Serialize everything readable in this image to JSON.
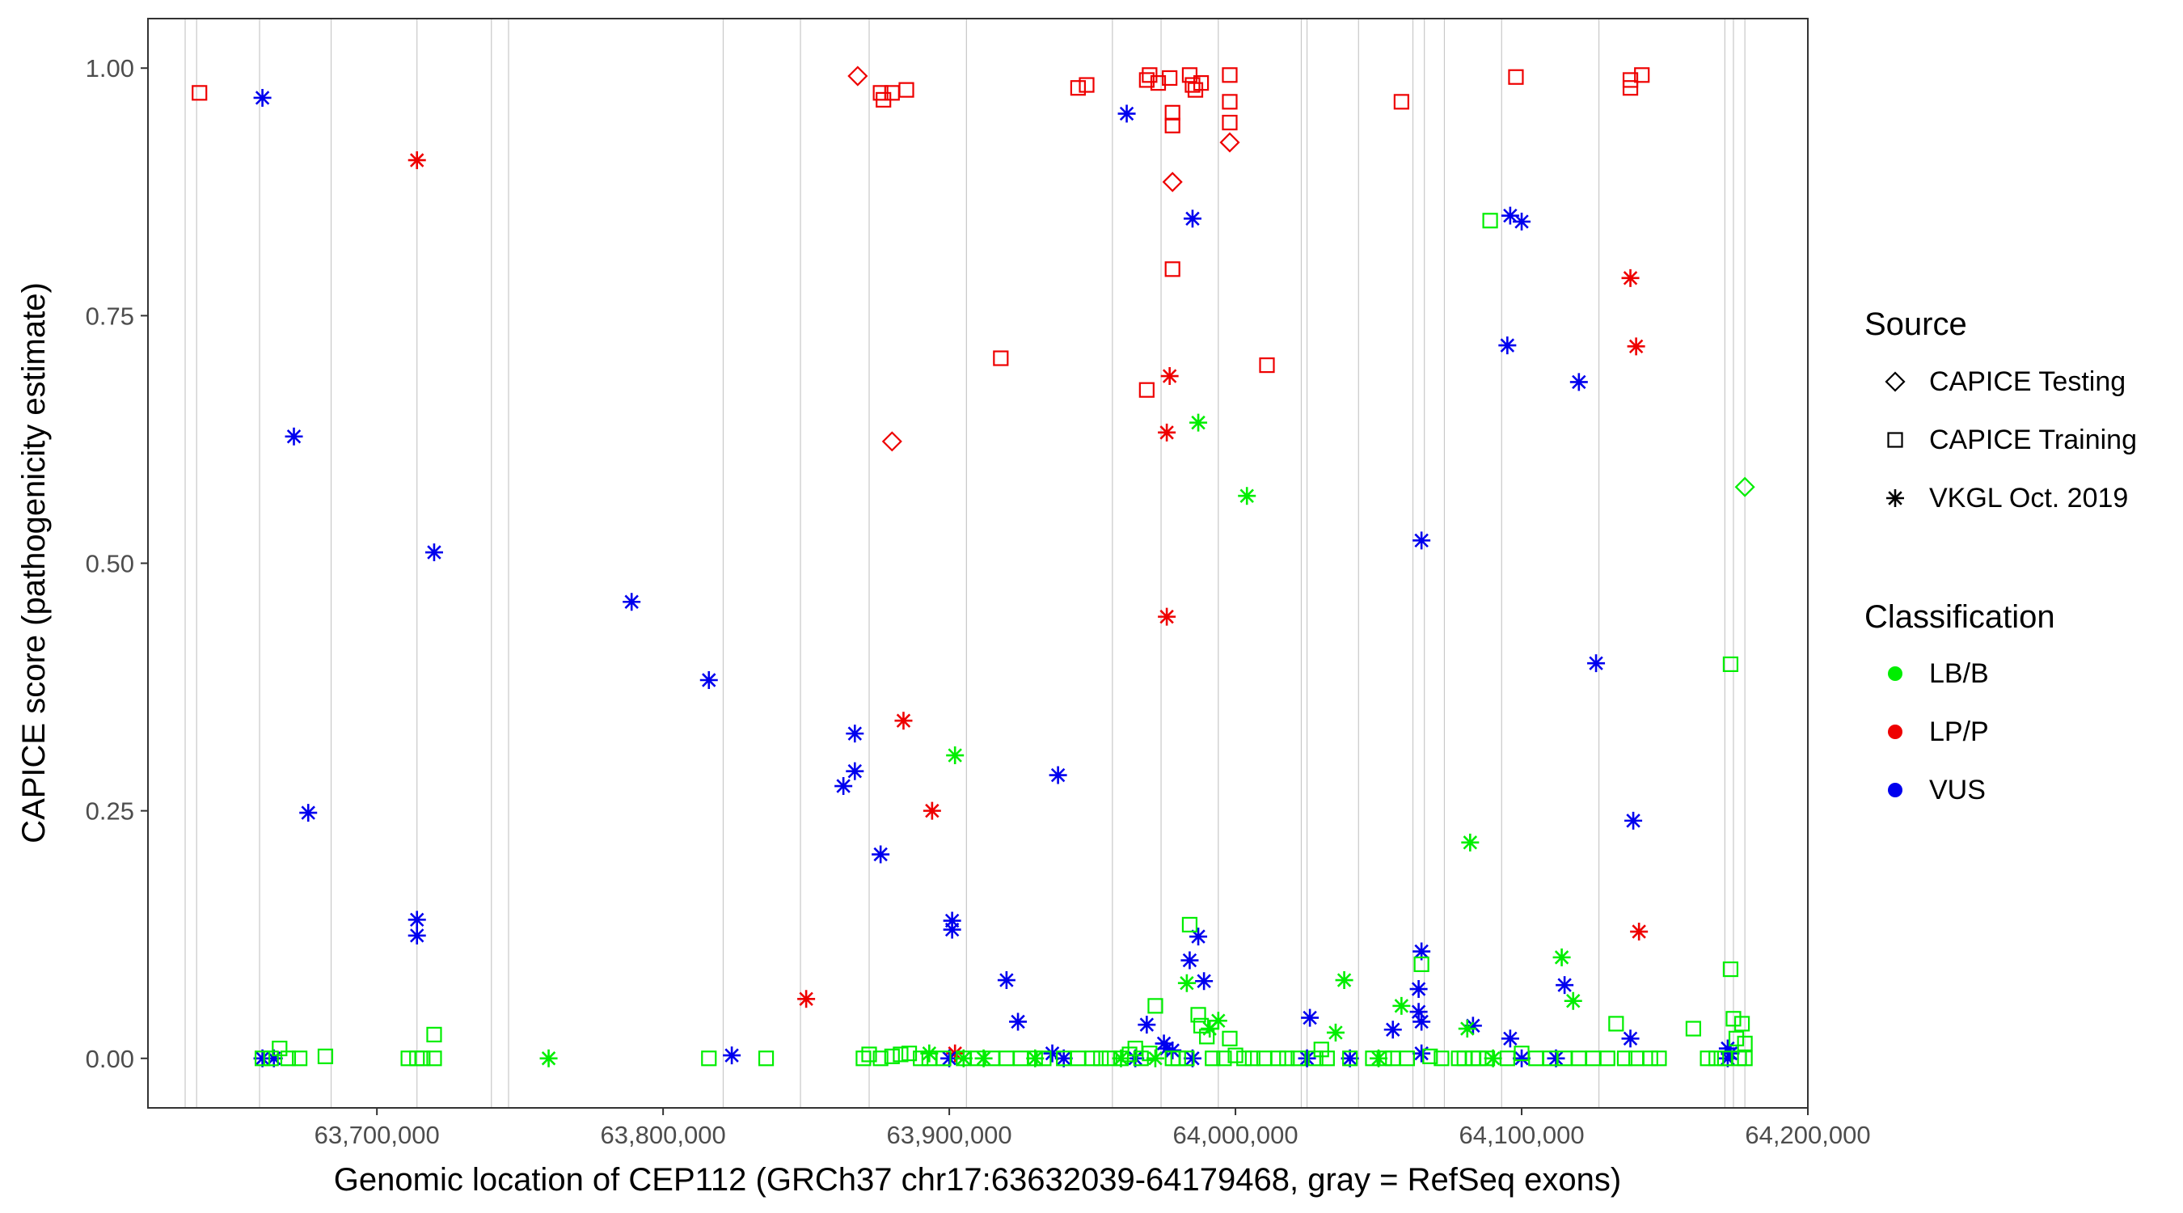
{
  "chart_data": {
    "type": "scatter",
    "title": "",
    "xlabel": "Genomic location of CEP112 (GRCh37 chr17:63632039-64179468, gray = RefSeq exons)",
    "ylabel": "CAPICE score (pathogenicity estimate)",
    "xlim": [
      63620000,
      64200000
    ],
    "ylim": [
      -0.05,
      1.05
    ],
    "x_ticks": [
      63700000,
      63800000,
      63900000,
      64000000,
      64100000,
      64200000
    ],
    "x_tick_labels": [
      "63,700,000",
      "63,800,000",
      "63,900,000",
      "64,000,000",
      "64,100,000",
      "64,200,000"
    ],
    "y_ticks": [
      0,
      0.25,
      0.5,
      0.75,
      1
    ],
    "y_tick_labels": [
      "0.00",
      "0.25",
      "0.50",
      "0.75",
      "1.00"
    ],
    "exons": [
      63633000,
      63637000,
      63659000,
      63684000,
      63714000,
      63740000,
      63746000,
      63821000,
      63848000,
      63872000,
      63906000,
      63957000,
      63974000,
      63994000,
      64023000,
      64025000,
      64043000,
      64062000,
      64066000,
      64073000,
      64093000,
      64127000,
      64171000,
      64174000,
      64178000
    ],
    "legend": {
      "source_title": "Source",
      "source_entries": [
        {
          "key": "testing",
          "label": "CAPICE Testing"
        },
        {
          "key": "training",
          "label": "CAPICE Training"
        },
        {
          "key": "vkgl",
          "label": "VKGL Oct. 2019"
        }
      ],
      "class_title": "Classification",
      "class_entries": [
        {
          "key": "LB/B",
          "label": "LB/B",
          "color": "#00ee00"
        },
        {
          "key": "LP/P",
          "label": "LP/P",
          "color": "#ee0000"
        },
        {
          "key": "VUS",
          "label": "VUS",
          "color": "#0000ee"
        }
      ]
    },
    "series": [
      {
        "name": "CAPICE Training LP/P",
        "source": "training",
        "class": "LP/P",
        "points": [
          [
            63638000,
            0.975
          ],
          [
            63876000,
            0.975
          ],
          [
            63877000,
            0.968
          ],
          [
            63880000,
            0.975
          ],
          [
            63885000,
            0.978
          ],
          [
            63918000,
            0.707
          ],
          [
            63945000,
            0.98
          ],
          [
            63948000,
            0.983
          ],
          [
            63969000,
            0.988
          ],
          [
            63970000,
            0.993
          ],
          [
            63969000,
            0.675
          ],
          [
            63973000,
            0.985
          ],
          [
            63977000,
            0.99
          ],
          [
            63978000,
            0.955
          ],
          [
            63978000,
            0.942
          ],
          [
            63978000,
            0.797
          ],
          [
            63984000,
            0.993
          ],
          [
            63985000,
            0.983
          ],
          [
            63986000,
            0.978
          ],
          [
            63988000,
            0.985
          ],
          [
            63998000,
            0.993
          ],
          [
            63998000,
            0.966
          ],
          [
            63998000,
            0.945
          ],
          [
            64011000,
            0.7
          ],
          [
            64058000,
            0.966
          ],
          [
            64098000,
            0.991
          ],
          [
            64138000,
            0.988
          ],
          [
            64138000,
            0.98
          ],
          [
            64142000,
            0.993
          ]
        ]
      },
      {
        "name": "CAPICE Testing LP/P",
        "source": "testing",
        "class": "LP/P",
        "points": [
          [
            63868000,
            0.992
          ],
          [
            63880000,
            0.623
          ],
          [
            63978000,
            0.885
          ],
          [
            63998000,
            0.925
          ]
        ]
      },
      {
        "name": "VKGL LP/P",
        "source": "vkgl",
        "class": "LP/P",
        "points": [
          [
            63714000,
            0.907
          ],
          [
            63850000,
            0.06
          ],
          [
            63884000,
            0.341
          ],
          [
            63894000,
            0.25
          ],
          [
            63902000,
            0.005
          ],
          [
            63976000,
            0.632
          ],
          [
            63977000,
            0.689
          ],
          [
            63976000,
            0.446
          ],
          [
            64138000,
            0.788
          ],
          [
            64140000,
            0.719
          ],
          [
            64141000,
            0.128
          ]
        ]
      },
      {
        "name": "VKGL VUS",
        "source": "vkgl",
        "class": "VUS",
        "points": [
          [
            63660000,
            0.97
          ],
          [
            63671000,
            0.628
          ],
          [
            63676000,
            0.248
          ],
          [
            63720000,
            0.511
          ],
          [
            63714000,
            0.14
          ],
          [
            63714000,
            0.124
          ],
          [
            63789000,
            0.461
          ],
          [
            63816000,
            0.382
          ],
          [
            63824000,
            0.003
          ],
          [
            63863000,
            0.275
          ],
          [
            63867000,
            0.29
          ],
          [
            63867000,
            0.328
          ],
          [
            63876000,
            0.206
          ],
          [
            63901000,
            0.139
          ],
          [
            63901000,
            0.13
          ],
          [
            63920000,
            0.079
          ],
          [
            63924000,
            0.037
          ],
          [
            63938000,
            0.286
          ],
          [
            63936000,
            0.005
          ],
          [
            63962000,
            0.954
          ],
          [
            63985000,
            0.848
          ],
          [
            63984000,
            0.099
          ],
          [
            63987000,
            0.123
          ],
          [
            63989000,
            0.078
          ],
          [
            63969000,
            0.034
          ],
          [
            63975000,
            0.015
          ],
          [
            63976000,
            0.01
          ],
          [
            63978000,
            0.008
          ],
          [
            64026000,
            0.041
          ],
          [
            64055000,
            0.029
          ],
          [
            64065000,
            0.523
          ],
          [
            64065000,
            0.108
          ],
          [
            64064000,
            0.07
          ],
          [
            64064000,
            0.047
          ],
          [
            64065000,
            0.037
          ],
          [
            64083000,
            0.033
          ],
          [
            64095000,
            0.72
          ],
          [
            64096000,
            0.851
          ],
          [
            64100000,
            0.845
          ],
          [
            64120000,
            0.683
          ],
          [
            64126000,
            0.399
          ],
          [
            64115000,
            0.074
          ],
          [
            64096000,
            0.02
          ],
          [
            64139000,
            0.24
          ],
          [
            64138000,
            0.02
          ],
          [
            64172000,
            0.01
          ],
          [
            64173000,
            0.005
          ],
          [
            64172000,
            0.0
          ],
          [
            63660000,
            0.0
          ],
          [
            63664000,
            0.0
          ],
          [
            63900000,
            0.0
          ],
          [
            63940000,
            0.0
          ],
          [
            63965000,
            0.0
          ],
          [
            63985000,
            0.0
          ],
          [
            64025000,
            0.0
          ],
          [
            64040000,
            0.0
          ],
          [
            64065000,
            0.005
          ],
          [
            64100000,
            0.0
          ],
          [
            64112000,
            0.0
          ]
        ]
      },
      {
        "name": "VKGL LB/B",
        "source": "vkgl",
        "class": "LB/B",
        "points": [
          [
            63760000,
            0.0
          ],
          [
            63893000,
            0.005
          ],
          [
            63902000,
            0.306
          ],
          [
            63930000,
            0.0
          ],
          [
            63983000,
            0.076
          ],
          [
            63987000,
            0.642
          ],
          [
            63991000,
            0.03
          ],
          [
            63994000,
            0.038
          ],
          [
            64004000,
            0.568
          ],
          [
            64035000,
            0.026
          ],
          [
            64038000,
            0.079
          ],
          [
            64058000,
            0.053
          ],
          [
            64082000,
            0.218
          ],
          [
            64081000,
            0.03
          ],
          [
            64114000,
            0.102
          ],
          [
            64118000,
            0.058
          ],
          [
            63905000,
            0.0
          ],
          [
            63912000,
            0.0
          ],
          [
            63960000,
            0.0
          ],
          [
            63972000,
            0.0
          ],
          [
            64050000,
            0.0
          ],
          [
            64090000,
            0.0
          ]
        ]
      },
      {
        "name": "CAPICE Training LB/B",
        "source": "training",
        "class": "LB/B",
        "points": [
          [
            63660000,
            0.0
          ],
          [
            63663000,
            0.0
          ],
          [
            63666000,
            0.01
          ],
          [
            63669000,
            0.0
          ],
          [
            63673000,
            0.0
          ],
          [
            63682000,
            0.002
          ],
          [
            63711000,
            0.0
          ],
          [
            63714000,
            0.0
          ],
          [
            63716000,
            0.0
          ],
          [
            63720000,
            0.0
          ],
          [
            63720000,
            0.024
          ],
          [
            63816000,
            0.0
          ],
          [
            63836000,
            0.0
          ],
          [
            63870000,
            0.0
          ],
          [
            63872000,
            0.004
          ],
          [
            63876000,
            0.0
          ],
          [
            63880000,
            0.002
          ],
          [
            63883000,
            0.004
          ],
          [
            63886000,
            0.005
          ],
          [
            63890000,
            0.0
          ],
          [
            63893000,
            0.0
          ],
          [
            63898000,
            0.0
          ],
          [
            63905000,
            0.0
          ],
          [
            63910000,
            0.0
          ],
          [
            63915000,
            0.0
          ],
          [
            63920000,
            0.0
          ],
          [
            63925000,
            0.0
          ],
          [
            63930000,
            0.0
          ],
          [
            63933000,
            0.0
          ],
          [
            63940000,
            0.0
          ],
          [
            63945000,
            0.0
          ],
          [
            63950000,
            0.0
          ],
          [
            63953000,
            0.0
          ],
          [
            63956000,
            0.0
          ],
          [
            63960000,
            0.0
          ],
          [
            63963000,
            0.004
          ],
          [
            63965000,
            0.01
          ],
          [
            63967000,
            0.0
          ],
          [
            63970000,
            0.005
          ],
          [
            63972000,
            0.053
          ],
          [
            63978000,
            0.0
          ],
          [
            63980000,
            0.0
          ],
          [
            63983000,
            0.0
          ],
          [
            63984000,
            0.135
          ],
          [
            63987000,
            0.044
          ],
          [
            63988000,
            0.033
          ],
          [
            63990000,
            0.022
          ],
          [
            63992000,
            0.0
          ],
          [
            63996000,
            0.0
          ],
          [
            63998000,
            0.02
          ],
          [
            64000000,
            0.003
          ],
          [
            64003000,
            0.0
          ],
          [
            64006000,
            0.0
          ],
          [
            64010000,
            0.0
          ],
          [
            64015000,
            0.0
          ],
          [
            64018000,
            0.0
          ],
          [
            64022000,
            0.0
          ],
          [
            64028000,
            0.0
          ],
          [
            64030000,
            0.009
          ],
          [
            64032000,
            0.0
          ],
          [
            64040000,
            0.0
          ],
          [
            64048000,
            0.0
          ],
          [
            64052000,
            0.0
          ],
          [
            64055000,
            0.0
          ],
          [
            64060000,
            0.0
          ],
          [
            64065000,
            0.095
          ],
          [
            64068000,
            0.002
          ],
          [
            64072000,
            0.0
          ],
          [
            64078000,
            0.0
          ],
          [
            64080000,
            0.0
          ],
          [
            64083000,
            0.0
          ],
          [
            64085000,
            0.0
          ],
          [
            64088000,
            0.0
          ],
          [
            64089000,
            0.846
          ],
          [
            64095000,
            0.0
          ],
          [
            64100000,
            0.005
          ],
          [
            64105000,
            0.0
          ],
          [
            64110000,
            0.0
          ],
          [
            64115000,
            0.0
          ],
          [
            64120000,
            0.0
          ],
          [
            64125000,
            0.0
          ],
          [
            64130000,
            0.0
          ],
          [
            64133000,
            0.035
          ],
          [
            64136000,
            0.0
          ],
          [
            64140000,
            0.0
          ],
          [
            64145000,
            0.0
          ],
          [
            64148000,
            0.0
          ],
          [
            64160000,
            0.03
          ],
          [
            64165000,
            0.0
          ],
          [
            64168000,
            0.0
          ],
          [
            64171000,
            0.0
          ],
          [
            64173000,
            0.398
          ],
          [
            64173000,
            0.09
          ],
          [
            64174000,
            0.04
          ],
          [
            64175000,
            0.02
          ],
          [
            64176000,
            0.0
          ],
          [
            64177000,
            0.035
          ],
          [
            64178000,
            0.015
          ],
          [
            64178000,
            0.0
          ]
        ]
      },
      {
        "name": "CAPICE Testing LB/B",
        "source": "testing",
        "class": "LB/B",
        "points": [
          [
            64178000,
            0.577
          ]
        ]
      }
    ]
  }
}
